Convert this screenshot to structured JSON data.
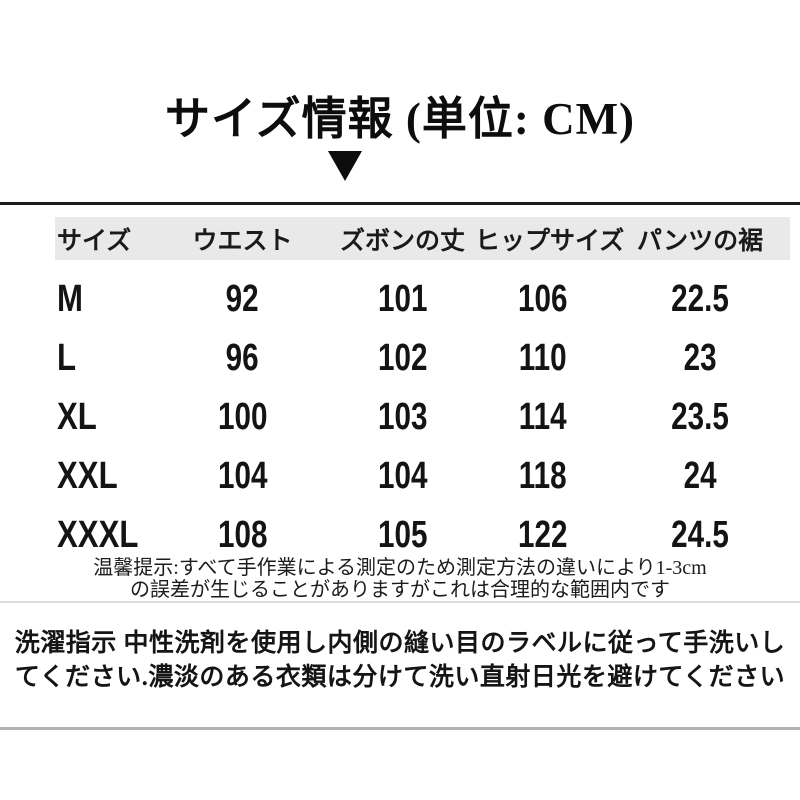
{
  "header": {
    "title": "サイズ情報 (単位: CM)"
  },
  "table": {
    "unit": "CM",
    "columns": [
      "サイズ",
      "ウエスト",
      "ズボンの丈",
      "ヒップサイズ",
      "パンツの裾"
    ],
    "rows": [
      [
        "M",
        "92",
        "101",
        "106",
        "22.5"
      ],
      [
        "L",
        "96",
        "102",
        "110",
        "23"
      ],
      [
        "XL",
        "100",
        "103",
        "114",
        "23.5"
      ],
      [
        "XXL",
        "104",
        "104",
        "118",
        "24"
      ],
      [
        "XXXL",
        "108",
        "105",
        "122",
        "24.5"
      ]
    ]
  },
  "note": {
    "line1": "温馨提示:すべて手作業による測定のため測定方法の違いにより1-3cm",
    "line2": "の誤差が生じることがありますがこれは合理的な範囲内です"
  },
  "care": {
    "line1": "洗濯指示 中性洗剤を使用し内側の縫い目のラベルに従って手洗いし",
    "line2": "てください.濃淡のある衣類は分けて洗い直射日光を避けてください"
  },
  "colors": {
    "ink": "#111111",
    "header-bg": "#e9e9e9",
    "rule-dark": "#1b1b1b",
    "rule-mid": "#8d8d8d",
    "rule-mid-shadow": "#dcdcdc",
    "rule-light": "#b2b2b2"
  }
}
